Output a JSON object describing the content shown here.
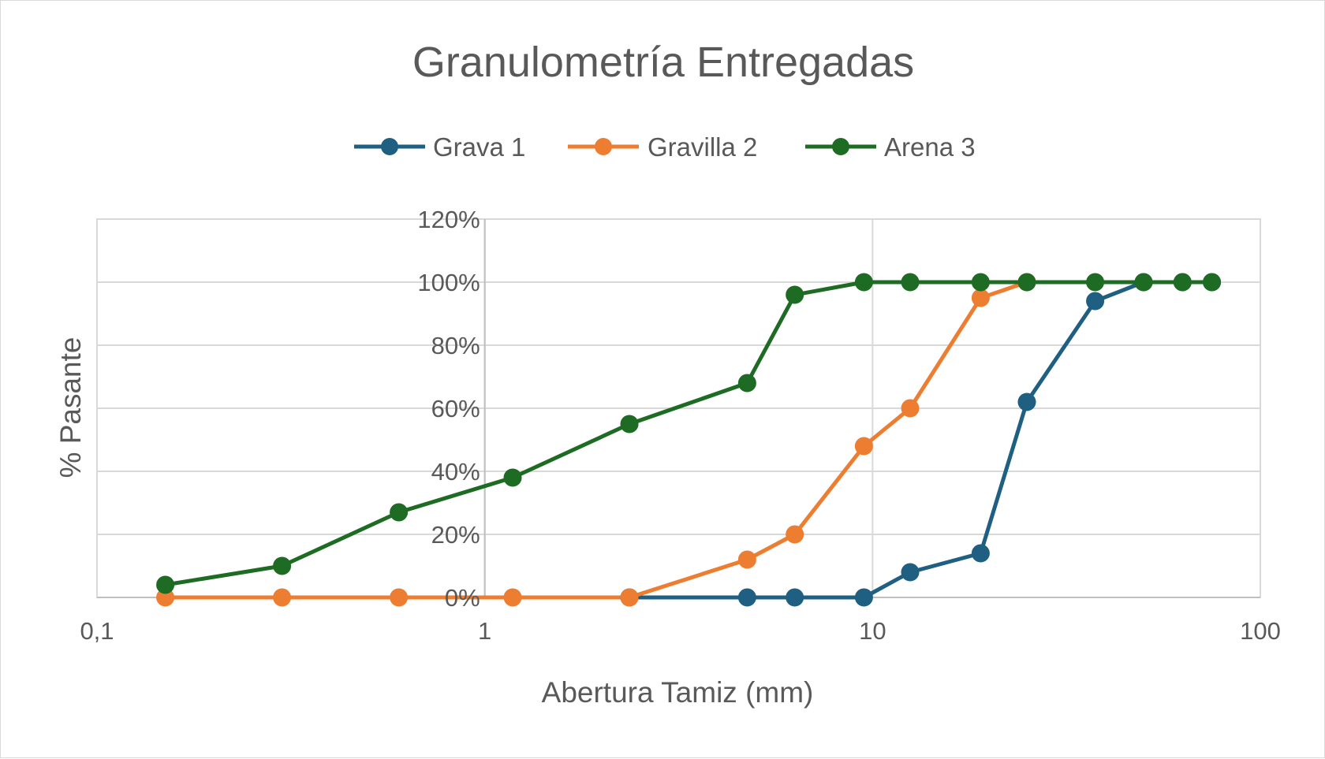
{
  "chart_data": {
    "type": "line",
    "title": "Granulometría Entregadas",
    "xlabel": "Abertura Tamiz (mm)",
    "ylabel": "% Pasante",
    "x_scale": "log",
    "xlim": [
      0.1,
      100
    ],
    "ylim": [
      0,
      1.2
    ],
    "x_ticks": [
      0.1,
      1,
      10,
      100
    ],
    "x_tick_labels": [
      "0,1",
      "1",
      "10",
      "100"
    ],
    "y_ticks": [
      0,
      0.2,
      0.4,
      0.6,
      0.8,
      1.0,
      1.2
    ],
    "y_tick_labels": [
      "0%",
      "20%",
      "40%",
      "60%",
      "80%",
      "100%",
      "120%"
    ],
    "grid": true,
    "legend_position": "top",
    "series": [
      {
        "name": "Grava 1",
        "color": "#1f5f82",
        "x": [
          2.36,
          4.75,
          6.3,
          9.5,
          12.5,
          19,
          25,
          37.5,
          50,
          63,
          75
        ],
        "y": [
          0,
          0,
          0,
          0,
          0.08,
          0.14,
          0.62,
          0.94,
          1.0,
          1.0,
          1.0
        ]
      },
      {
        "name": "Gravilla 2",
        "color": "#ed7d31",
        "x": [
          0.15,
          0.3,
          0.6,
          1.18,
          2.36,
          4.75,
          6.3,
          9.5,
          12.5,
          19,
          25
        ],
        "y": [
          0,
          0,
          0,
          0,
          0,
          0.12,
          0.2,
          0.48,
          0.6,
          0.95,
          1.0
        ]
      },
      {
        "name": "Arena 3",
        "color": "#1e6b23",
        "x": [
          0.15,
          0.3,
          0.6,
          1.18,
          2.36,
          4.75,
          6.3,
          9.5,
          12.5,
          19,
          25,
          37.5,
          50,
          63,
          75
        ],
        "y": [
          0.04,
          0.1,
          0.27,
          0.38,
          0.55,
          0.68,
          0.96,
          1.0,
          1.0,
          1.0,
          1.0,
          1.0,
          1.0,
          1.0,
          1.0
        ]
      }
    ]
  }
}
